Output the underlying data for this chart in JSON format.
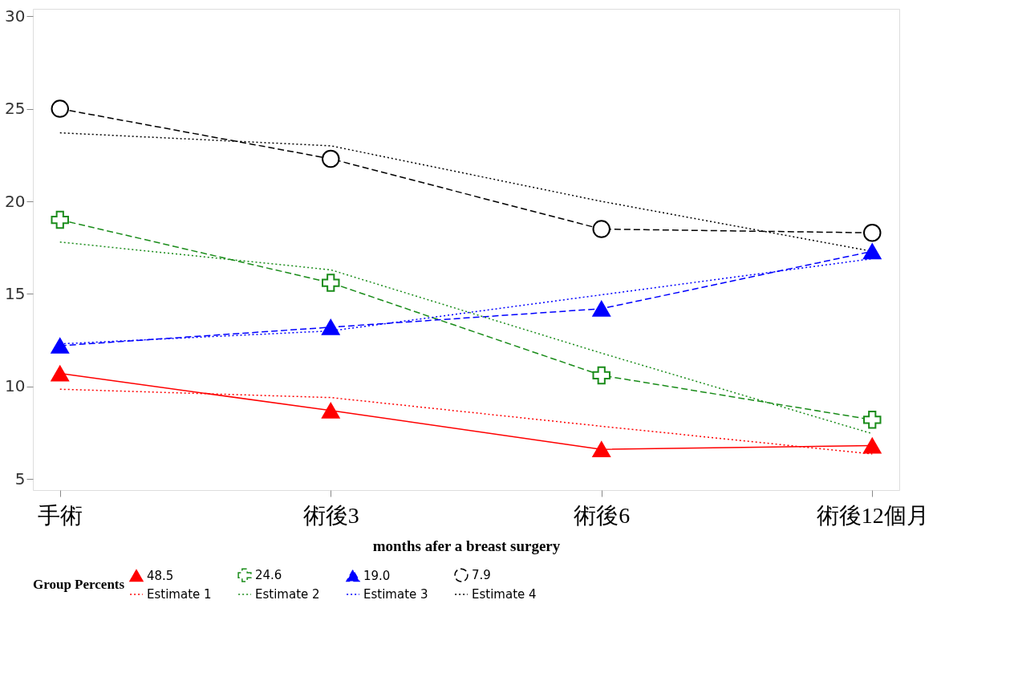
{
  "chart_data": {
    "type": "line",
    "xlabel": "months afer a breast surgery",
    "legend_title": "Group Percents",
    "categories": [
      "手術",
      "術後3",
      "術後6",
      "術後12個月"
    ],
    "ylim": [
      4.4,
      30.4
    ],
    "yticks": [
      5,
      10,
      15,
      20,
      25,
      30
    ],
    "grid": false,
    "legend": "bottom",
    "series": [
      {
        "name": "48.5",
        "color": "#ff0000",
        "values": [
          10.7,
          8.7,
          6.6,
          6.8
        ],
        "marker": "triangle",
        "line_style": "solid"
      },
      {
        "name": "24.6",
        "color": "#1a8c1a",
        "values": [
          19.0,
          15.6,
          10.6,
          8.2
        ],
        "marker": "cross",
        "line_style": "dashed"
      },
      {
        "name": "19.0",
        "color": "#0000ff",
        "values": [
          12.2,
          13.2,
          14.2,
          17.3
        ],
        "marker": "triangle",
        "line_style": "dashed"
      },
      {
        "name": "7.9",
        "color": "#000000",
        "values": [
          25.0,
          22.3,
          18.5,
          18.3
        ],
        "marker": "circle",
        "line_style": "dashed"
      },
      {
        "name": "Estimate 1",
        "color": "#ff0000",
        "values": [
          9.85,
          9.4,
          7.85,
          6.35
        ],
        "marker": "none",
        "line_style": "dotted"
      },
      {
        "name": "Estimate 2",
        "color": "#1a8c1a",
        "values": [
          17.8,
          16.3,
          11.8,
          7.45
        ],
        "marker": "none",
        "line_style": "dotted"
      },
      {
        "name": "Estimate 3",
        "color": "#0000ff",
        "values": [
          12.3,
          13.0,
          14.95,
          16.9
        ],
        "marker": "none",
        "line_style": "dotted"
      },
      {
        "name": "Estimate 4",
        "color": "#000000",
        "values": [
          23.7,
          23.0,
          20.0,
          17.3
        ],
        "marker": "none",
        "line_style": "dotted"
      }
    ]
  }
}
